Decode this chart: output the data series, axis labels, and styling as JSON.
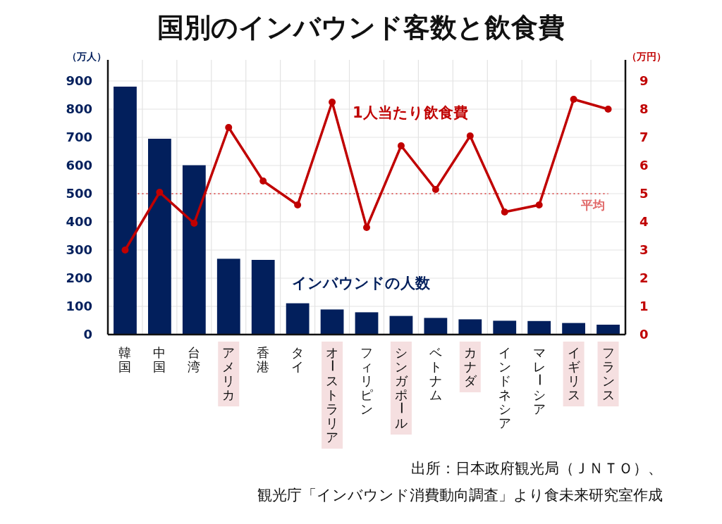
{
  "chart_data": {
    "type": "bar",
    "title": "国別のインバウンド客数と飲食費",
    "ylabel": "（万人）",
    "y2label": "（万円）",
    "categories": [
      "韓国",
      "中国",
      "台湾",
      "アメリカ",
      "香港",
      "タイ",
      "オーストラリア",
      "フィリピン",
      "シンガポール",
      "ベトナム",
      "カナダ",
      "インドネシア",
      "マレーシア",
      "イギリス",
      "フランス"
    ],
    "series": [
      {
        "name": "インバウンドの人数",
        "color": "#021f5c",
        "values": [
          880,
          695,
          601,
          269,
          265,
          111,
          89,
          79,
          66,
          59,
          54,
          49,
          48,
          41,
          35
        ]
      },
      {
        "name": "1人当たり飲食費",
        "type": "line",
        "axis": "y2",
        "color": "#c00000",
        "marker": "circle",
        "values": [
          3.0,
          5.05,
          3.95,
          7.35,
          5.45,
          4.6,
          8.25,
          3.8,
          6.7,
          5.15,
          7.05,
          4.35,
          4.6,
          8.35,
          8.0
        ]
      }
    ],
    "ylim": [
      0,
      975
    ],
    "yticks": [
      0,
      100,
      200,
      300,
      400,
      500,
      600,
      700,
      800,
      900
    ],
    "y2lim": [
      0,
      9.75
    ],
    "y2ticks": [
      0,
      1,
      2,
      3,
      4,
      5,
      6,
      7,
      8,
      9
    ],
    "grid": true,
    "ref_lines": [
      {
        "axis": "y2",
        "value": 5,
        "label": "平均",
        "color": "#e06666",
        "line_style": "dotted"
      }
    ],
    "annotations": [
      "出所：日本政府観光局（ＪＮＴＯ）、",
      "観光庁「インバウンド消費動向調査」より食未来研究室作成"
    ]
  }
}
